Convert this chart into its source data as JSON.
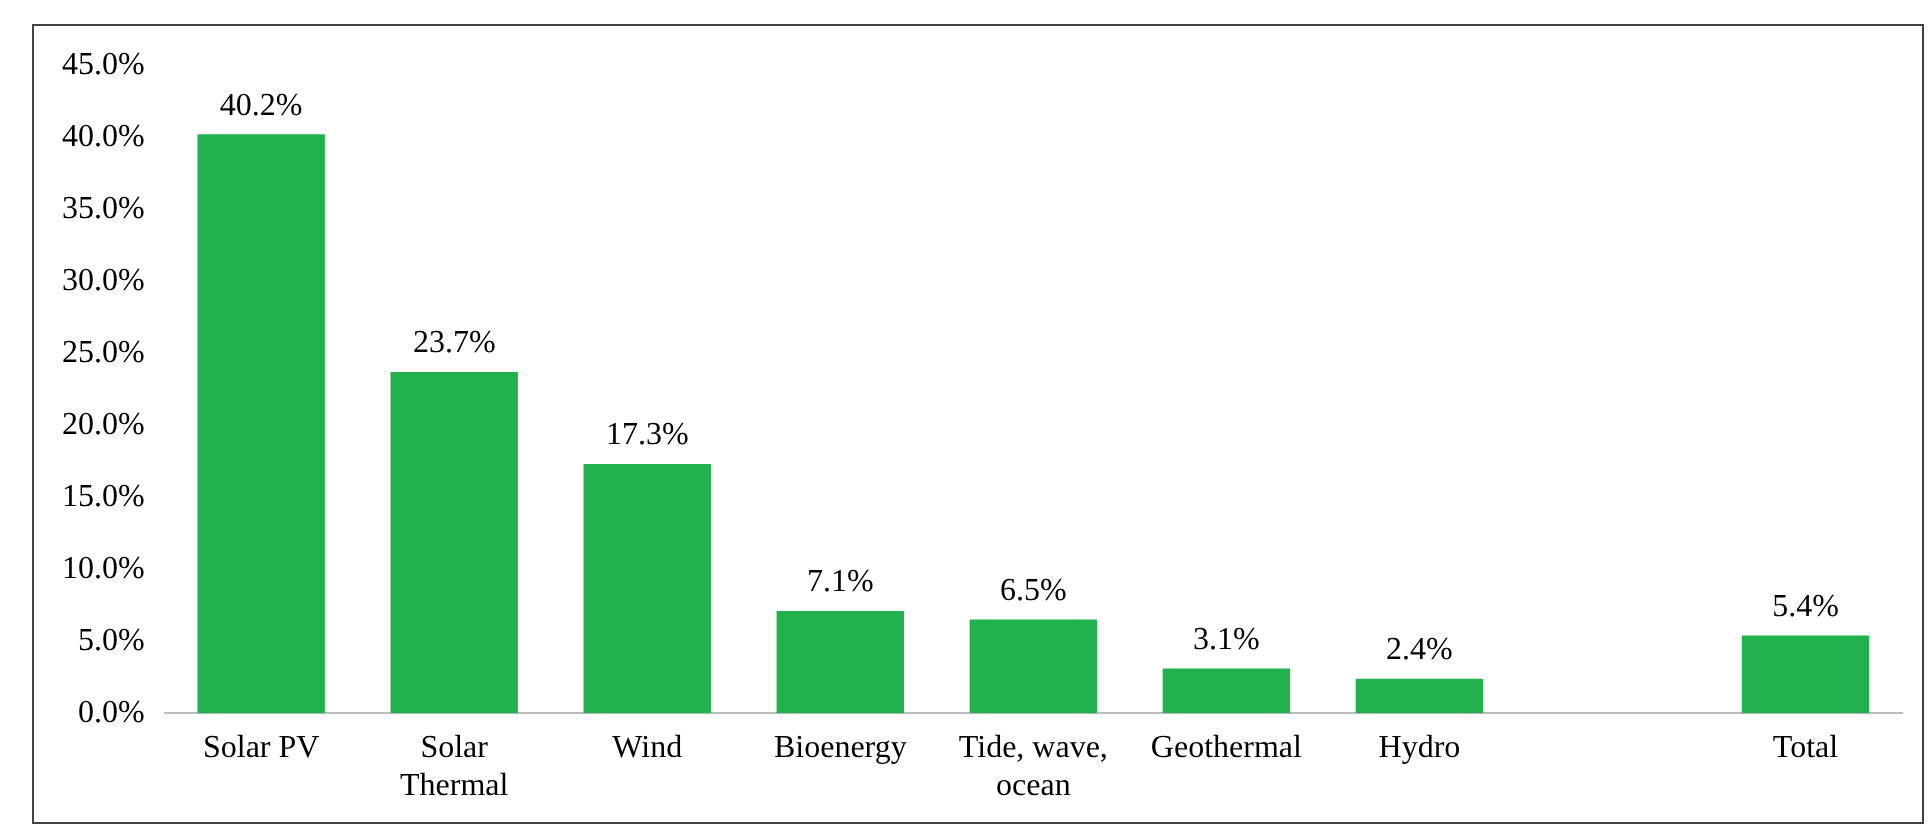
{
  "chart_data": {
    "type": "bar",
    "categories": [
      "Solar PV",
      "Solar Thermal",
      "Wind",
      "Bioenergy",
      "Tide, wave, ocean",
      "Geothermal",
      "Hydro",
      null,
      "Total"
    ],
    "values": [
      40.2,
      23.7,
      17.3,
      7.1,
      6.5,
      3.1,
      2.4,
      null,
      5.4
    ],
    "value_labels": [
      "40.2%",
      "23.7%",
      "17.3%",
      "7.1%",
      "6.5%",
      "3.1%",
      "2.4%",
      null,
      "5.4%"
    ],
    "color": "#22b14c",
    "ylim": [
      0,
      45
    ],
    "yticks": [
      {
        "value": 0,
        "label": "0.0%"
      },
      {
        "value": 5,
        "label": "5.0%"
      },
      {
        "value": 10,
        "label": "10.0%"
      },
      {
        "value": 15,
        "label": "15.0%"
      },
      {
        "value": 20,
        "label": "20.0%"
      },
      {
        "value": 25,
        "label": "25.0%"
      },
      {
        "value": 30,
        "label": "30.0%"
      },
      {
        "value": 35,
        "label": "35.0%"
      },
      {
        "value": 40,
        "label": "40.0%"
      },
      {
        "value": 45,
        "label": "45.0%"
      }
    ],
    "grid": false,
    "legend": false
  }
}
